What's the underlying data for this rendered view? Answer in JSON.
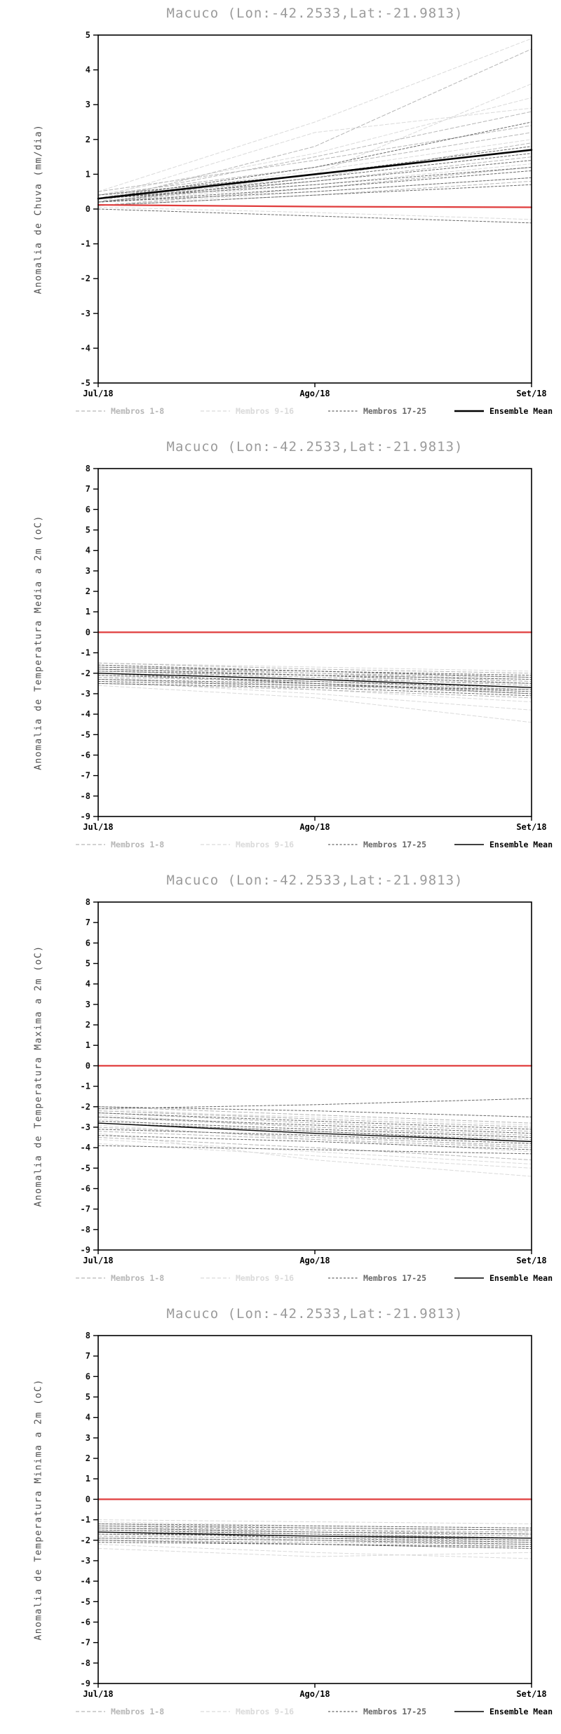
{
  "page": {
    "background": "#ffffff"
  },
  "chart_data": [
    {
      "type": "line",
      "title": "Macuco (Lon:-42.2533,Lat:-21.9813)",
      "ylabel": "Anomalia de Chuva (mm/dia)",
      "x_labels": [
        "Jul/18",
        "Ago/18",
        "Set/18"
      ],
      "ylim": [
        -5,
        5
      ],
      "ytick_step": 1,
      "legend_position": "bottom",
      "grid": false,
      "reference_line": {
        "color": "#e03c3c",
        "width": 2.2,
        "values": [
          0.12,
          0.07,
          0.05
        ]
      },
      "groups": [
        {
          "label": "Membros 1-8",
          "color": "#b6b6b6",
          "dash": "5 3",
          "width": 1,
          "lines": [
            [
              0.2,
              0.8,
              1.5
            ],
            [
              0.3,
              1.5,
              2.8
            ],
            [
              0.1,
              0.4,
              0.8
            ],
            [
              0.4,
              1.2,
              2.2
            ],
            [
              0.2,
              1.8,
              4.6
            ],
            [
              0.3,
              0.9,
              1.9
            ],
            [
              0.1,
              0.6,
              1.2
            ],
            [
              0.5,
              1.4,
              2.4
            ]
          ]
        },
        {
          "label": "Membros 9-16",
          "color": "#dadada",
          "dash": "5 3",
          "width": 1,
          "lines": [
            [
              0.2,
              1.0,
              3.6
            ],
            [
              0.3,
              2.2,
              2.9
            ],
            [
              0.1,
              0.5,
              0.9
            ],
            [
              0.4,
              1.6,
              3.2
            ],
            [
              0.2,
              0.7,
              1.3
            ],
            [
              0.3,
              1.1,
              2.0
            ],
            [
              0.05,
              -0.1,
              -0.3
            ],
            [
              0.5,
              2.5,
              4.9
            ]
          ]
        },
        {
          "label": "Membros 17-25",
          "color": "#696969",
          "dash": "3 2.5",
          "width": 1,
          "lines": [
            [
              0.2,
              0.6,
              1.1
            ],
            [
              0.3,
              0.8,
              1.4
            ],
            [
              0.1,
              0.4,
              0.7
            ],
            [
              0.4,
              1.0,
              1.8
            ],
            [
              0.2,
              0.5,
              0.9
            ],
            [
              0.3,
              1.2,
              2.5
            ],
            [
              0.0,
              -0.2,
              -0.4
            ],
            [
              0.2,
              0.9,
              1.6
            ],
            [
              0.3,
              0.7,
              1.2
            ]
          ]
        },
        {
          "label": "Ensemble Mean",
          "color": "#000000",
          "dash": "",
          "width": 2.6,
          "lines": [
            [
              0.3,
              1.0,
              1.7
            ]
          ]
        }
      ]
    },
    {
      "type": "line",
      "title": "Macuco (Lon:-42.2533,Lat:-21.9813)",
      "ylabel": "Anomalia de Temperatura Media a 2m (oC)",
      "x_labels": [
        "Jul/18",
        "Ago/18",
        "Set/18"
      ],
      "ylim": [
        -9,
        8
      ],
      "ytick_step": 1,
      "legend_position": "bottom",
      "grid": false,
      "reference_line": {
        "color": "#e03c3c",
        "width": 2.2,
        "values": [
          0,
          0,
          0
        ]
      },
      "groups": [
        {
          "label": "Membros 1-8",
          "color": "#b6b6b6",
          "dash": "5 3",
          "width": 1,
          "lines": [
            [
              -1.8,
              -2.0,
              -2.2
            ],
            [
              -2.2,
              -2.4,
              -2.8
            ],
            [
              -1.5,
              -1.8,
              -2.0
            ],
            [
              -2.5,
              -2.8,
              -3.2
            ],
            [
              -2.0,
              -2.3,
              -2.5
            ],
            [
              -1.7,
              -2.0,
              -2.4
            ],
            [
              -2.3,
              -2.6,
              -3.0
            ],
            [
              -1.9,
              -2.2,
              -2.6
            ]
          ]
        },
        {
          "label": "Membros 9-16",
          "color": "#dadada",
          "dash": "5 3",
          "width": 1,
          "lines": [
            [
              -2.1,
              -2.5,
              -3.0
            ],
            [
              -1.6,
              -2.0,
              -2.3
            ],
            [
              -2.4,
              -3.0,
              -3.8
            ],
            [
              -1.8,
              -2.4,
              -2.9
            ],
            [
              -2.6,
              -3.2,
              -4.4
            ],
            [
              -2.0,
              -2.2,
              -2.4
            ],
            [
              -1.5,
              -1.7,
              -1.9
            ],
            [
              -2.2,
              -2.8,
              -3.4
            ]
          ]
        },
        {
          "label": "Membros 17-25",
          "color": "#696969",
          "dash": "3 2.5",
          "width": 1,
          "lines": [
            [
              -1.7,
              -1.9,
              -2.1
            ],
            [
              -2.3,
              -2.5,
              -2.9
            ],
            [
              -1.9,
              -2.1,
              -2.3
            ],
            [
              -2.1,
              -2.4,
              -2.7
            ],
            [
              -2.5,
              -2.7,
              -3.1
            ],
            [
              -1.6,
              -1.9,
              -2.2
            ],
            [
              -2.0,
              -2.5,
              -3.0
            ],
            [
              -2.4,
              -2.6,
              -2.8
            ],
            [
              -1.8,
              -2.1,
              -2.5
            ]
          ]
        },
        {
          "label": "Ensemble Mean",
          "color": "#000000",
          "dash": "",
          "width": 1.4,
          "lines": [
            [
              -2.0,
              -2.3,
              -2.7
            ]
          ]
        }
      ]
    },
    {
      "type": "line",
      "title": "Macuco (Lon:-42.2533,Lat:-21.9813)",
      "ylabel": "Anomalia de Temperatura Maxima a 2m (oC)",
      "x_labels": [
        "Jul/18",
        "Ago/18",
        "Set/18"
      ],
      "ylim": [
        -9,
        8
      ],
      "ytick_step": 1,
      "legend_position": "bottom",
      "grid": false,
      "reference_line": {
        "color": "#e03c3c",
        "width": 2.2,
        "values": [
          0,
          0,
          0
        ]
      },
      "groups": [
        {
          "label": "Membros 1-8",
          "color": "#b6b6b6",
          "dash": "5 3",
          "width": 1,
          "lines": [
            [
              -2.2,
              -2.6,
              -3.0
            ],
            [
              -2.8,
              -3.2,
              -3.6
            ],
            [
              -2.0,
              -2.4,
              -2.8
            ],
            [
              -3.2,
              -3.6,
              -4.0
            ],
            [
              -2.5,
              -3.0,
              -3.4
            ],
            [
              -3.5,
              -4.0,
              -4.6
            ],
            [
              -2.3,
              -2.8,
              -3.2
            ],
            [
              -3.0,
              -3.5,
              -3.9
            ]
          ]
        },
        {
          "label": "Membros 9-16",
          "color": "#dadada",
          "dash": "5 3",
          "width": 1,
          "lines": [
            [
              -2.6,
              -3.4,
              -4.0
            ],
            [
              -3.8,
              -4.4,
              -5.0
            ],
            [
              -2.1,
              -2.6,
              -3.0
            ],
            [
              -3.3,
              -4.6,
              -5.4
            ],
            [
              -2.4,
              -3.0,
              -3.5
            ],
            [
              -2.9,
              -3.6,
              -4.2
            ],
            [
              -2.2,
              -2.5,
              -2.9
            ],
            [
              -3.6,
              -4.2,
              -4.8
            ]
          ]
        },
        {
          "label": "Membros 17-25",
          "color": "#696969",
          "dash": "3 2.5",
          "width": 1,
          "lines": [
            [
              -2.3,
              -2.7,
              -3.1
            ],
            [
              -3.1,
              -3.4,
              -3.8
            ],
            [
              -2.0,
              -2.2,
              -2.5
            ],
            [
              -2.7,
              -3.1,
              -3.5
            ],
            [
              -3.4,
              -3.7,
              -4.1
            ],
            [
              -2.5,
              -2.9,
              -3.3
            ],
            [
              -2.1,
              -1.9,
              -1.6
            ],
            [
              -3.9,
              -4.1,
              -4.3
            ],
            [
              -2.8,
              -3.2,
              -3.7
            ]
          ]
        },
        {
          "label": "Ensemble Mean",
          "color": "#000000",
          "dash": "",
          "width": 1.4,
          "lines": [
            [
              -2.8,
              -3.3,
              -3.7
            ]
          ]
        }
      ]
    },
    {
      "type": "line",
      "title": "Macuco (Lon:-42.2533,Lat:-21.9813)",
      "ylabel": "Anomalia de Temperatura Minima a 2m (oC)",
      "x_labels": [
        "Jul/18",
        "Ago/18",
        "Set/18"
      ],
      "ylim": [
        -9,
        8
      ],
      "ytick_step": 1,
      "legend_position": "bottom",
      "grid": false,
      "reference_line": {
        "color": "#e03c3c",
        "width": 2.2,
        "values": [
          0,
          0,
          0
        ]
      },
      "groups": [
        {
          "label": "Membros 1-8",
          "color": "#b6b6b6",
          "dash": "5 3",
          "width": 1,
          "lines": [
            [
              -1.4,
              -1.5,
              -1.6
            ],
            [
              -1.8,
              -1.9,
              -2.0
            ],
            [
              -1.2,
              -1.4,
              -1.5
            ],
            [
              -2.0,
              -2.1,
              -2.2
            ],
            [
              -1.6,
              -1.7,
              -1.9
            ],
            [
              -1.3,
              -1.5,
              -1.7
            ],
            [
              -1.9,
              -2.0,
              -2.1
            ],
            [
              -1.5,
              -1.6,
              -1.8
            ]
          ]
        },
        {
          "label": "Membros 9-16",
          "color": "#dadada",
          "dash": "5 3",
          "width": 1,
          "lines": [
            [
              -1.7,
              -2.0,
              -2.3
            ],
            [
              -1.1,
              -1.3,
              -1.4
            ],
            [
              -2.2,
              -2.6,
              -2.9
            ],
            [
              -1.4,
              -1.6,
              -1.8
            ],
            [
              -2.4,
              -2.8,
              -2.6
            ],
            [
              -1.6,
              -1.8,
              -2.0
            ],
            [
              -1.0,
              -1.1,
              -1.2
            ],
            [
              -1.8,
              -2.2,
              -2.4
            ]
          ]
        },
        {
          "label": "Membros 17-25",
          "color": "#696969",
          "dash": "3 2.5",
          "width": 1,
          "lines": [
            [
              -1.3,
              -1.4,
              -1.5
            ],
            [
              -1.9,
              -2.0,
              -2.2
            ],
            [
              -1.5,
              -1.7,
              -1.9
            ],
            [
              -1.7,
              -1.8,
              -2.0
            ],
            [
              -2.1,
              -2.2,
              -2.3
            ],
            [
              -1.2,
              -1.3,
              -1.4
            ],
            [
              -1.6,
              -1.9,
              -2.1
            ],
            [
              -2.0,
              -2.2,
              -2.4
            ],
            [
              -1.4,
              -1.6,
              -1.7
            ]
          ]
        },
        {
          "label": "Ensemble Mean",
          "color": "#000000",
          "dash": "",
          "width": 1.4,
          "lines": [
            [
              -1.6,
              -1.8,
              -1.9
            ]
          ]
        }
      ]
    }
  ]
}
